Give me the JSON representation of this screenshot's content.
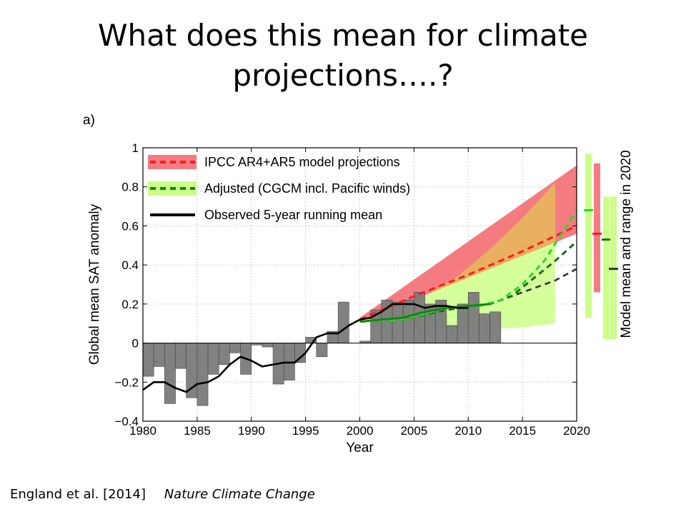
{
  "slide": {
    "title": "What does this mean for climate projections….?",
    "panel_label": "a)",
    "citation": {
      "authors": "England et al. [2014]",
      "journal": "Nature Climate Change"
    }
  },
  "chart_data": {
    "type": "bar+line",
    "xlabel": "Year",
    "ylabel": "Global mean SAT anomaly",
    "xlim": [
      1980,
      2020
    ],
    "ylim": [
      -0.4,
      1.0
    ],
    "x_ticks": [
      1980,
      1985,
      1990,
      1995,
      2000,
      2005,
      2010,
      2015,
      2020
    ],
    "y_ticks": [
      {
        "value": 1.0,
        "label": "1"
      },
      {
        "value": 0.8,
        "label": "0.8"
      },
      {
        "value": 0.6,
        "label": "0.6"
      },
      {
        "value": 0.4,
        "label": "0.4"
      },
      {
        "value": 0.2,
        "label": "0.2"
      },
      {
        "value": 0.0,
        "label": "0"
      },
      {
        "value": -0.2,
        "label": "−0.2"
      },
      {
        "value": -0.4,
        "label": "−0.4"
      }
    ],
    "grid": true,
    "legend": [
      {
        "label": "IPCC AR4+AR5 model projections",
        "line_color": "#ff1a1a",
        "band_color": "#f47c80",
        "style": "dashed"
      },
      {
        "label": "Adjusted (CGCM incl. Pacific winds)",
        "line_color": "#118811",
        "band_color": "#ccff88",
        "style": "dashed"
      },
      {
        "label": "Observed 5-year running mean",
        "line_color": "#000000",
        "style": "solid"
      }
    ],
    "legend_position": "top-left",
    "colors": {
      "bars": "#7a7a7a",
      "ipcc_band": "#f47c80",
      "adjusted_band": "#ccff88",
      "overlap": "#e8b060",
      "green_bright": "#22dd22",
      "green_dark": "#1a6a1a"
    },
    "annual_bars": {
      "years": [
        1980,
        1981,
        1982,
        1983,
        1984,
        1985,
        1986,
        1987,
        1988,
        1989,
        1990,
        1991,
        1992,
        1993,
        1994,
        1995,
        1996,
        1997,
        1998,
        1999,
        2000,
        2001,
        2002,
        2003,
        2004,
        2005,
        2006,
        2007,
        2008,
        2009,
        2010,
        2011,
        2012
      ],
      "values": [
        -0.17,
        -0.12,
        -0.31,
        -0.13,
        -0.28,
        -0.32,
        -0.16,
        -0.11,
        -0.05,
        -0.16,
        -0.01,
        -0.02,
        -0.21,
        -0.19,
        -0.1,
        0.03,
        -0.07,
        0.06,
        0.21,
        0.0,
        0.01,
        0.17,
        0.22,
        0.21,
        0.22,
        0.26,
        0.2,
        0.22,
        0.09,
        0.2,
        0.26,
        0.15,
        0.16
      ]
    },
    "observed_running_mean": {
      "x": [
        1980,
        1981,
        1982,
        1983,
        1984,
        1985,
        1986,
        1987,
        1988,
        1989,
        1990,
        1991,
        1992,
        1993,
        1994,
        1995,
        1996,
        1997,
        1998,
        1999,
        2000,
        2001,
        2002,
        2003,
        2004,
        2005,
        2006,
        2007,
        2008,
        2009,
        2010
      ],
      "y": [
        -0.24,
        -0.2,
        -0.2,
        -0.23,
        -0.25,
        -0.21,
        -0.2,
        -0.17,
        -0.11,
        -0.07,
        -0.09,
        -0.12,
        -0.11,
        -0.1,
        -0.1,
        -0.05,
        0.03,
        0.05,
        0.05,
        0.09,
        0.12,
        0.13,
        0.16,
        0.2,
        0.2,
        0.2,
        0.18,
        0.19,
        0.19,
        0.18,
        0.18
      ]
    },
    "ipcc_range": {
      "x": [
        2000,
        2020
      ],
      "upper": [
        0.13,
        0.91
      ],
      "lower": [
        0.11,
        0.56
      ]
    },
    "adjusted_range": {
      "x": [
        2000,
        2003,
        2006,
        2009,
        2012,
        2015,
        2018
      ],
      "upper": [
        0.12,
        0.18,
        0.24,
        0.34,
        0.48,
        0.64,
        0.82
      ],
      "lower": [
        0.11,
        0.1,
        0.08,
        0.07,
        0.07,
        0.08,
        0.1
      ]
    },
    "ipcc_mean": {
      "x": [
        2000,
        2005,
        2010,
        2015,
        2020
      ],
      "y": [
        0.12,
        0.24,
        0.35,
        0.47,
        0.6
      ]
    },
    "adjusted_mean_bright": {
      "x": [
        2000,
        2004,
        2008,
        2011,
        2013,
        2015,
        2017,
        2020
      ],
      "y": [
        0.11,
        0.12,
        0.18,
        0.19,
        0.22,
        0.3,
        0.42,
        0.68
      ]
    },
    "adjusted_mean_dark": {
      "x": [
        2000,
        2004,
        2008,
        2012,
        2014,
        2016,
        2018,
        2020
      ],
      "y": [
        0.11,
        0.12,
        0.17,
        0.2,
        0.24,
        0.33,
        0.42,
        0.52
      ]
    },
    "adjusted_mean_black": {
      "x": [
        2000,
        2004,
        2008,
        2012,
        2014,
        2016,
        2018,
        2020
      ],
      "y": [
        0.11,
        0.12,
        0.17,
        0.2,
        0.24,
        0.28,
        0.32,
        0.38
      ]
    },
    "range_2020": {
      "label": "Model mean and range in 2020",
      "bars": [
        {
          "color": "#ccff88",
          "low": 0.13,
          "high": 0.97,
          "mean": 0.68,
          "mean_color": "#22dd22"
        },
        {
          "color": "#f47c80",
          "low": 0.26,
          "high": 0.92,
          "mean": 0.56,
          "mean_color": "#ff1a1a"
        },
        {
          "color": "#ccff88",
          "low": 0.02,
          "high": 0.75,
          "mean": 0.53,
          "mean_color": "#1a6a1a"
        },
        {
          "color": "#ccff88",
          "low": 0.02,
          "high": 0.75,
          "mean": 0.38,
          "mean_color": "#333333"
        }
      ]
    }
  }
}
